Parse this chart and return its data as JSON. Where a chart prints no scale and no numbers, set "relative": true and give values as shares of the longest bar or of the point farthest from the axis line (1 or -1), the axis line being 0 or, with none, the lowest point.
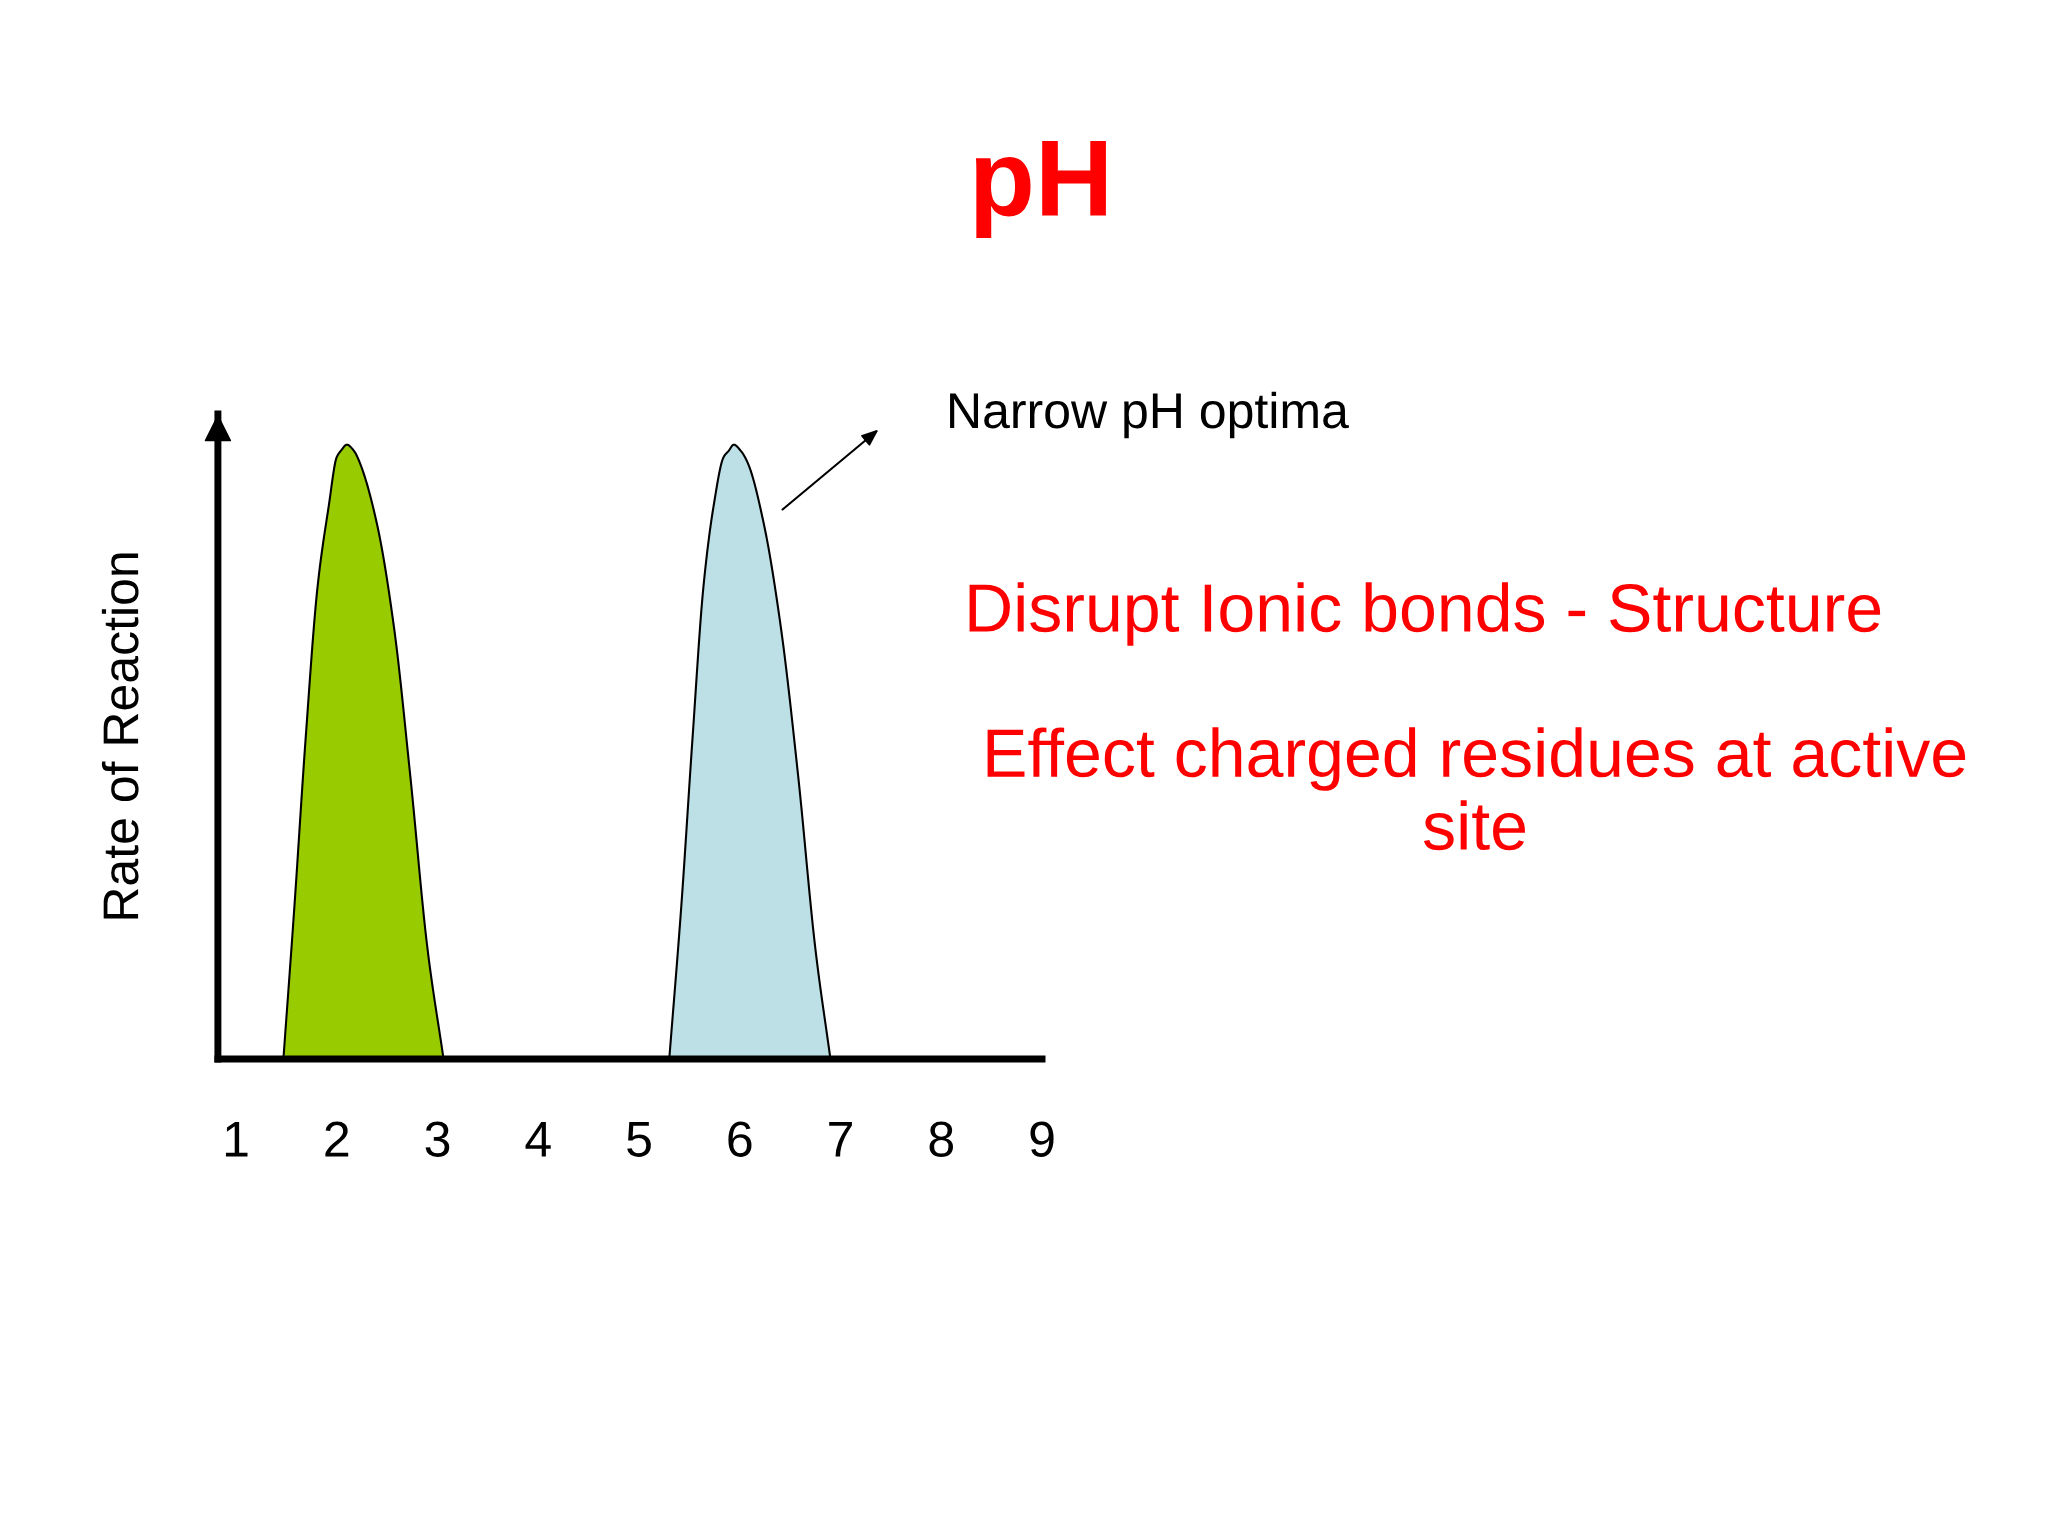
{
  "chart_data": {
    "type": "area",
    "title": "pH",
    "ylabel": "Rate of Reaction",
    "relative": true,
    "tick_labels": "x",
    "xlim": [
      0.82,
      9
    ],
    "xticks": [
      1,
      2,
      3,
      4,
      5,
      6,
      7,
      8,
      9
    ],
    "series": [
      {
        "color": "#99cc00",
        "x": [
          1.47,
          1.58,
          1.69,
          1.81,
          1.92,
          2.0,
          2.04,
          2.1,
          2.17,
          2.23,
          2.4,
          2.57,
          2.73,
          2.9,
          3.06
        ],
        "values": [
          0,
          0.25,
          0.52,
          0.77,
          0.9,
          0.98,
          0.99,
          1,
          0.99,
          0.97,
          0.87,
          0.7,
          0.46,
          0.18,
          0
        ]
      },
      {
        "color": "#bce0e5",
        "x": [
          5.3,
          5.42,
          5.53,
          5.64,
          5.74,
          5.84,
          5.89,
          5.94,
          6.01,
          6.08,
          6.24,
          6.41,
          6.58,
          6.75,
          6.9
        ],
        "values": [
          0,
          0.25,
          0.52,
          0.77,
          0.9,
          0.98,
          0.99,
          1,
          0.99,
          0.97,
          0.87,
          0.7,
          0.46,
          0.18,
          0
        ]
      }
    ],
    "annotations": [
      "Narrow pH optima",
      "Disrupt Ionic bonds - Structure",
      "Effect charged residues at active site"
    ]
  }
}
